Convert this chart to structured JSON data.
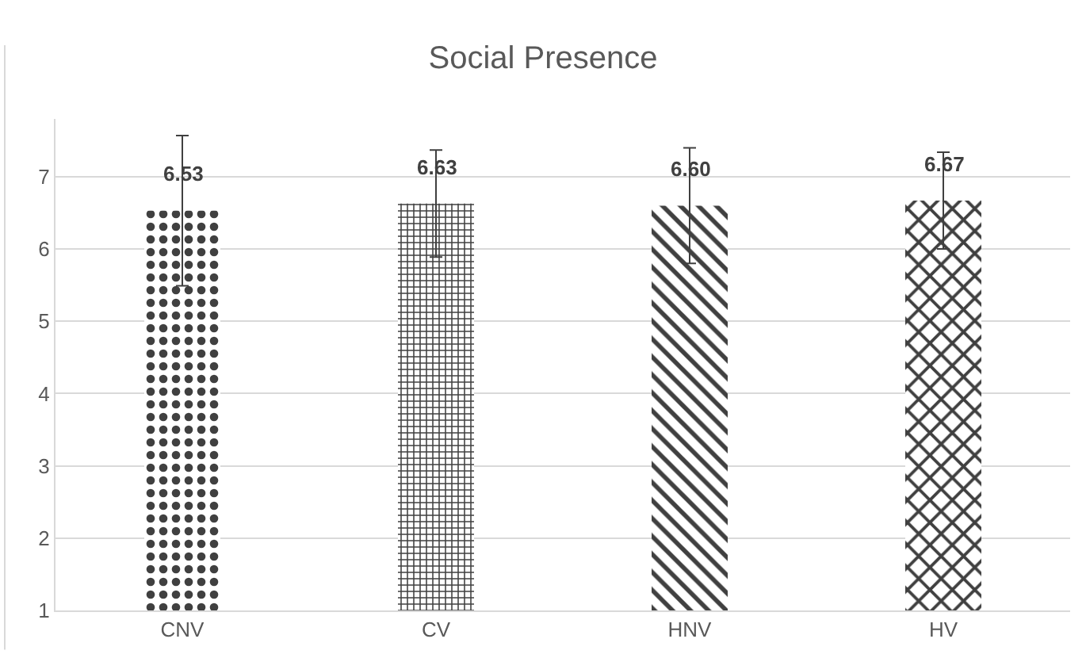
{
  "chart_data": {
    "type": "bar",
    "title": "Social Presence",
    "categories": [
      "CNV",
      "CV",
      "HNV",
      "HV"
    ],
    "values": [
      6.53,
      6.63,
      6.6,
      6.67
    ],
    "color": "#404040",
    "errors": [
      1.04,
      0.74,
      0.8,
      0.67
    ],
    "value_labels": [
      "6.53",
      "6.63",
      "6.60",
      "6.67"
    ],
    "ylim": [
      1,
      7.8
    ],
    "yticks": [
      1,
      2,
      3,
      4,
      5,
      6,
      7
    ],
    "grid": "y",
    "legend": false
  }
}
